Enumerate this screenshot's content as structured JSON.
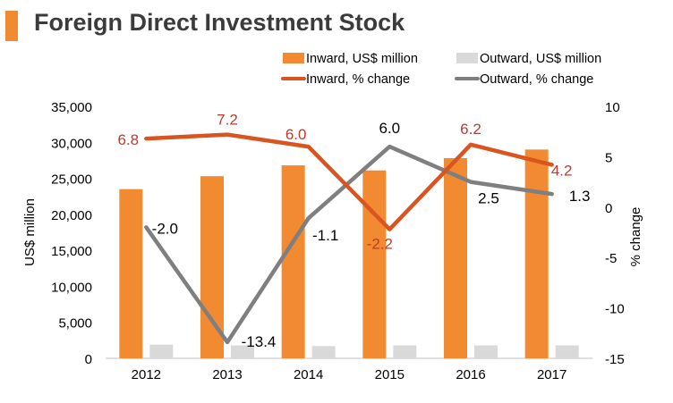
{
  "title": "Foreign Direct Investment Stock",
  "colors": {
    "accent": "#f28a32",
    "inward_bar": "#f28a32",
    "outward_bar": "#d9d9d9",
    "inward_line": "#d9541e",
    "outward_line": "#7f7f7f",
    "inward_label": "#c0392b",
    "outward_label": "#000000",
    "text": "#000000"
  },
  "chart_data": {
    "type": "bar",
    "categories": [
      "2012",
      "2013",
      "2014",
      "2015",
      "2016",
      "2017"
    ],
    "series": [
      {
        "name": "Inward, US$ million",
        "type": "bar",
        "axis": "left",
        "values": [
          23500,
          25300,
          26800,
          26100,
          27800,
          29000
        ]
      },
      {
        "name": "Outward, US$ million",
        "type": "bar",
        "axis": "left",
        "values": [
          1900,
          1800,
          1700,
          1800,
          1800,
          1800
        ]
      },
      {
        "name": "Inward, % change",
        "type": "line",
        "axis": "right",
        "values": [
          6.8,
          7.2,
          6.0,
          -2.2,
          6.2,
          4.2
        ],
        "labels": [
          "6.8",
          "7.2",
          "6.0",
          "-2.2",
          "6.2",
          "4.2"
        ]
      },
      {
        "name": "Outward, % change",
        "type": "line",
        "axis": "right",
        "values": [
          -2.0,
          -13.4,
          -1.1,
          6.0,
          2.5,
          1.3
        ],
        "labels": [
          "-2.0",
          "-13.4",
          "-1.1",
          "6.0",
          "2.5",
          "1.3"
        ]
      }
    ],
    "ylabel": "US$ million",
    "y2label": "% change",
    "ylim": [
      0,
      35000
    ],
    "y2lim": [
      -15,
      10
    ],
    "yticks": [
      "0",
      "5,000",
      "10,000",
      "15,000",
      "20,000",
      "25,000",
      "30,000",
      "35,000"
    ],
    "y2ticks": [
      "-15",
      "-10",
      "-5",
      "0",
      "5",
      "10"
    ],
    "legend": "top"
  }
}
